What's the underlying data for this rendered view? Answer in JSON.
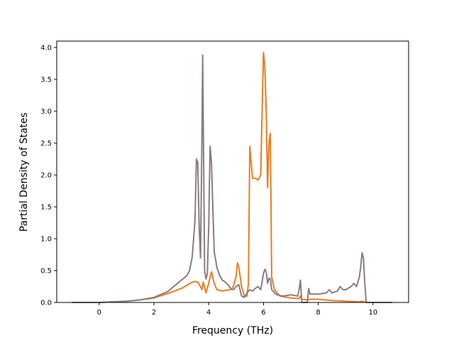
{
  "chart_data": {
    "type": "line",
    "title": "",
    "xlabel": "Frequency (THz)",
    "ylabel": "Partial Density of States",
    "xlim": [
      -1.55,
      11.3
    ],
    "ylim": [
      0.0,
      4.1
    ],
    "xticks": [
      0,
      2,
      4,
      6,
      8,
      10
    ],
    "xtick_labels": [
      "0",
      "2",
      "4",
      "6",
      "8",
      "10"
    ],
    "yticks": [
      0.0,
      0.5,
      1.0,
      1.5,
      2.0,
      2.5,
      3.0,
      3.5,
      4.0
    ],
    "ytick_labels": [
      "0.0",
      "0.5",
      "1.0",
      "1.5",
      "2.0",
      "2.5",
      "3.0",
      "3.5",
      "4.0"
    ],
    "grid": false,
    "legend": "none",
    "series": [
      {
        "color": "#e67e22",
        "x": [
          -1.0,
          0.0,
          0.5,
          1.0,
          1.5,
          2.0,
          2.5,
          3.0,
          3.4,
          3.5,
          3.6,
          3.7,
          3.75,
          3.8,
          3.9,
          4.0,
          4.05,
          4.1,
          4.2,
          4.3,
          4.5,
          4.8,
          4.9,
          5.0,
          5.05,
          5.1,
          5.2,
          5.3,
          5.4,
          5.45,
          5.5,
          5.55,
          5.6,
          5.7,
          5.8,
          5.9,
          5.95,
          6.0,
          6.05,
          6.1,
          6.15,
          6.2,
          6.25,
          6.3,
          6.4,
          6.6,
          7.0,
          7.3,
          7.35,
          7.4,
          7.6,
          7.7,
          8.0,
          8.5,
          9.0,
          9.5,
          9.6,
          9.65,
          9.8,
          10.0,
          10.7
        ],
        "y": [
          0.0,
          0.0,
          0.01,
          0.02,
          0.04,
          0.07,
          0.14,
          0.22,
          0.32,
          0.33,
          0.32,
          0.25,
          0.2,
          0.32,
          0.15,
          0.3,
          0.4,
          0.48,
          0.3,
          0.2,
          0.18,
          0.2,
          0.25,
          0.4,
          0.62,
          0.55,
          0.25,
          0.1,
          0.1,
          0.3,
          2.45,
          2.2,
          1.95,
          1.95,
          1.92,
          2.0,
          3.0,
          3.92,
          3.7,
          3.0,
          1.8,
          2.5,
          2.65,
          0.4,
          0.2,
          0.1,
          0.07,
          0.06,
          0.1,
          0.05,
          0.04,
          0.05,
          0.05,
          0.03,
          0.02,
          0.01,
          0.02,
          0.01,
          0.0,
          0.0,
          0.0
        ]
      },
      {
        "color": "#8c7b80",
        "x": [
          -1.0,
          0.0,
          0.5,
          1.0,
          1.5,
          2.0,
          2.5,
          3.0,
          3.2,
          3.3,
          3.4,
          3.5,
          3.55,
          3.6,
          3.65,
          3.7,
          3.75,
          3.78,
          3.85,
          3.9,
          3.95,
          4.0,
          4.05,
          4.1,
          4.15,
          4.2,
          4.3,
          4.4,
          4.5,
          4.6,
          4.7,
          4.8,
          4.9,
          5.0,
          5.1,
          5.2,
          5.3,
          5.4,
          5.5,
          5.6,
          5.7,
          5.8,
          5.9,
          6.0,
          6.05,
          6.1,
          6.15,
          6.2,
          6.25,
          6.3,
          6.35,
          6.4,
          6.5,
          6.7,
          7.0,
          7.25,
          7.3,
          7.35,
          7.4,
          7.45,
          7.6,
          7.65,
          7.7,
          7.75,
          8.0,
          8.3,
          8.4,
          8.5,
          8.7,
          8.8,
          8.9,
          9.0,
          9.2,
          9.3,
          9.4,
          9.5,
          9.55,
          9.6,
          9.65,
          9.7,
          9.75,
          10.0,
          10.7
        ],
        "y": [
          0.0,
          0.0,
          0.01,
          0.02,
          0.04,
          0.08,
          0.17,
          0.35,
          0.42,
          0.5,
          0.72,
          1.3,
          2.25,
          2.2,
          1.2,
          0.7,
          2.5,
          3.88,
          0.5,
          0.37,
          0.45,
          1.2,
          2.45,
          2.2,
          1.5,
          0.8,
          0.55,
          0.42,
          0.35,
          0.32,
          0.28,
          0.22,
          0.2,
          0.25,
          0.28,
          0.1,
          0.08,
          0.15,
          0.2,
          0.18,
          0.22,
          0.25,
          0.2,
          0.45,
          0.52,
          0.48,
          0.3,
          0.38,
          0.37,
          0.2,
          0.18,
          0.15,
          0.12,
          0.1,
          0.12,
          0.1,
          0.2,
          0.35,
          0.0,
          0.0,
          0.0,
          0.22,
          0.13,
          0.13,
          0.13,
          0.15,
          0.2,
          0.15,
          0.18,
          0.25,
          0.2,
          0.2,
          0.25,
          0.3,
          0.25,
          0.4,
          0.55,
          0.78,
          0.7,
          0.3,
          0.0,
          0.0,
          0.0
        ]
      }
    ]
  }
}
